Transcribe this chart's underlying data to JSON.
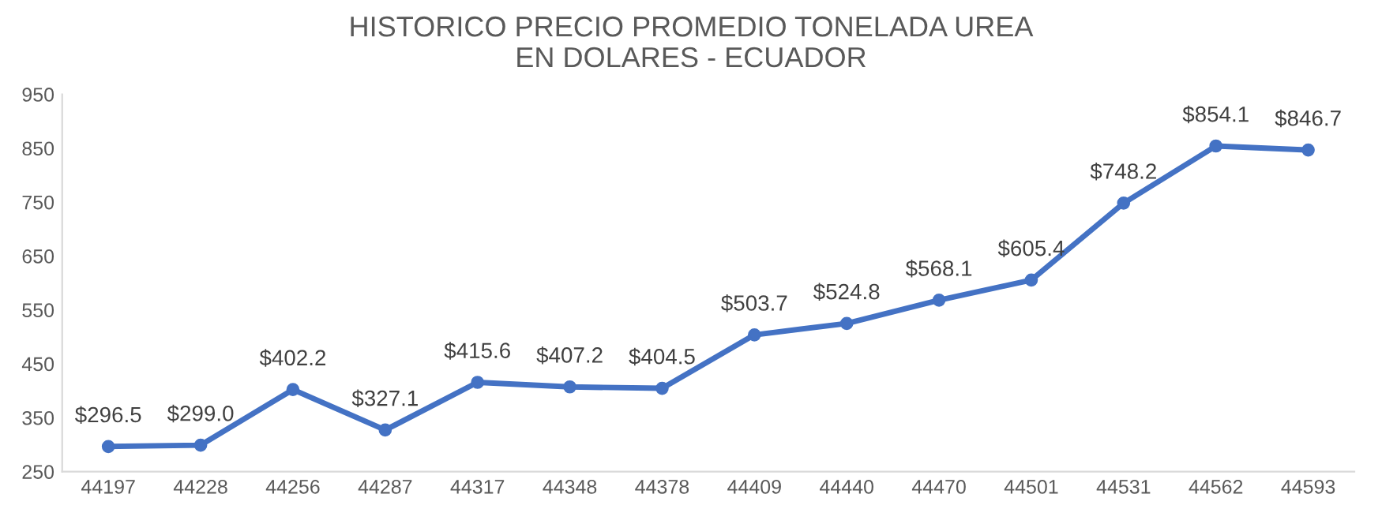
{
  "chart_data": {
    "type": "line",
    "title": "HISTORICO PRECIO PROMEDIO TONELADA UREA\nEN DOLARES - ECUADOR",
    "categories": [
      "44197",
      "44228",
      "44256",
      "44287",
      "44317",
      "44348",
      "44378",
      "44409",
      "44440",
      "44470",
      "44501",
      "44531",
      "44562",
      "44593"
    ],
    "values": [
      296.5,
      299.0,
      402.2,
      327.1,
      415.6,
      407.2,
      404.5,
      503.7,
      524.8,
      568.1,
      605.4,
      748.2,
      854.1,
      846.7
    ],
    "value_labels": [
      "$296.5",
      "$299.0",
      "$402.2",
      "$327.1",
      "$415.6",
      "$407.2",
      "$404.5",
      "$503.7",
      "$524.8",
      "$568.1",
      "$605.4",
      "$748.2",
      "$854.1",
      "$846.7"
    ],
    "color": "#4472c4",
    "marker": "circle",
    "line_style": "solid",
    "ylim": [
      250,
      950
    ],
    "yticks": [
      250,
      350,
      450,
      550,
      650,
      750,
      850,
      950
    ],
    "grid": false,
    "legend": false
  }
}
